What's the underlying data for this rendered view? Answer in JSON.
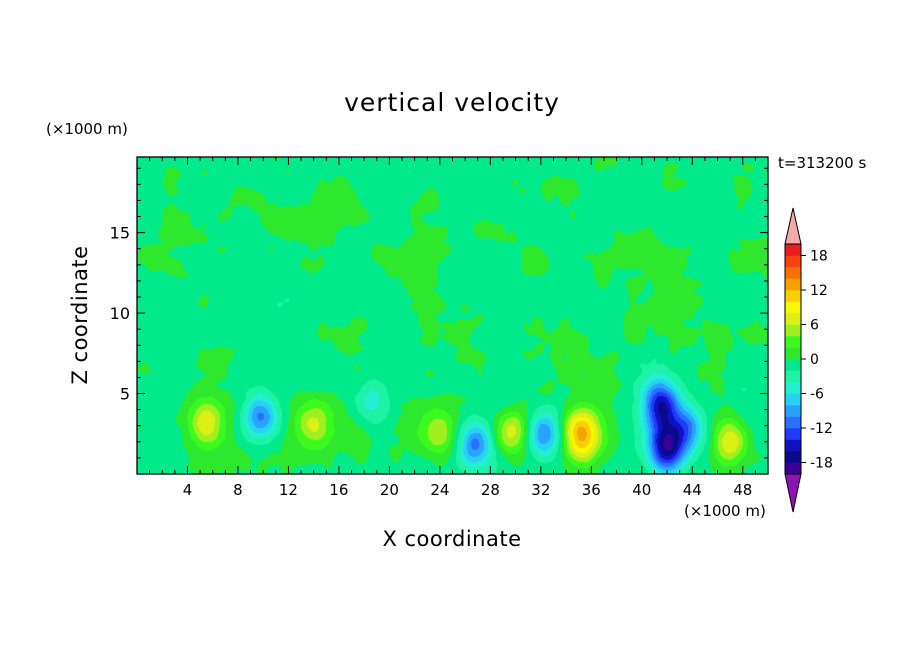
{
  "chart_data": {
    "type": "heatmap",
    "title": "vertical velocity",
    "xlabel": "X coordinate",
    "ylabel": "Z coordinate",
    "x_unit_label": "(×1000 m)",
    "y_unit_label": "(×1000 m)",
    "annotation": "t=313200 s",
    "xlim": [
      0,
      50
    ],
    "ylim": [
      0,
      19.7
    ],
    "x_ticks": [
      "4",
      "8",
      "12",
      "16",
      "20",
      "24",
      "28",
      "32",
      "36",
      "40",
      "44",
      "48"
    ],
    "y_ticks": [
      "5",
      "10",
      "15"
    ],
    "colorbar": {
      "tick_labels": [
        "18",
        "12",
        "6",
        "0",
        "-6",
        "-12",
        "-18"
      ],
      "tick_values": [
        18,
        12,
        6,
        0,
        -6,
        -12,
        -18
      ],
      "levels_min": -20,
      "levels_max": 20,
      "level_step": 2,
      "colors_low_to_high": [
        "#3a009a",
        "#0a0a8c",
        "#1010c4",
        "#1e3cff",
        "#2a70ff",
        "#28a4ff",
        "#28d2f2",
        "#22f0d2",
        "#1ef2a6",
        "#00ea8c",
        "#2ee82e",
        "#3cfa1e",
        "#a0f020",
        "#dcf014",
        "#f8f800",
        "#f8d000",
        "#f8a200",
        "#f87000",
        "#f84210",
        "#e81e1e"
      ],
      "under_color": "#8c14b4",
      "over_color": "#f4aaaa"
    },
    "features": [
      {
        "x": 5.5,
        "z": 3.2,
        "peak": 8
      },
      {
        "x": 9.8,
        "z": 3.5,
        "peak": -10
      },
      {
        "x": 14.0,
        "z": 3.0,
        "peak": 7
      },
      {
        "x": 18.8,
        "z": 4.5,
        "peak": -5
      },
      {
        "x": 23.8,
        "z": 2.6,
        "peak": 6
      },
      {
        "x": 26.8,
        "z": 1.9,
        "peak": -11
      },
      {
        "x": 29.8,
        "z": 2.6,
        "peak": 7
      },
      {
        "x": 32.2,
        "z": 2.5,
        "peak": -10
      },
      {
        "x": 35.2,
        "z": 2.4,
        "peak": 14
      },
      {
        "x": 41.5,
        "z": 4.3,
        "peak": -14
      },
      {
        "x": 42.0,
        "z": 1.6,
        "peak": -17
      },
      {
        "x": 43.6,
        "z": 2.8,
        "peak": -9
      },
      {
        "x": 47.0,
        "z": 2.0,
        "peak": 9
      }
    ]
  }
}
